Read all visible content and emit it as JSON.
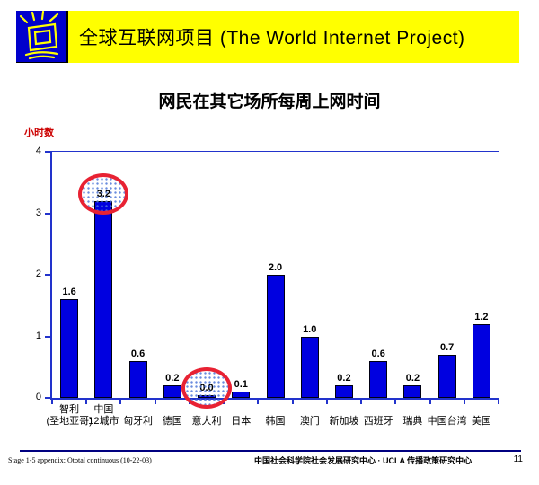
{
  "header": {
    "title": "全球互联网项目 (The World Internet Project)",
    "logo_icon": "shining-monitor-icon"
  },
  "slide_title": "网民在其它场所每周上网时间",
  "chart_data": {
    "type": "bar",
    "title": "网民在其它场所每周上网时间",
    "xlabel": "",
    "ylabel": "小时数",
    "ylim": [
      0,
      4
    ],
    "yticks": [
      0,
      1,
      2,
      3,
      4
    ],
    "grid": false,
    "legend": false,
    "categories": [
      "智利 (圣地亚哥)",
      "中国 12城市",
      "匈牙利",
      "德国",
      "意大利",
      "日本",
      "韩国",
      "澳门",
      "新加坡",
      "西班牙",
      "瑞典",
      "中国台湾",
      "美国"
    ],
    "category_lines": [
      [
        "智利",
        "(圣地亚哥)"
      ],
      [
        "中国",
        "12城市"
      ],
      [
        "匈牙利"
      ],
      [
        "德国"
      ],
      [
        "意大利"
      ],
      [
        "日本"
      ],
      [
        "韩国"
      ],
      [
        "澳门"
      ],
      [
        "新加坡"
      ],
      [
        "西班牙"
      ],
      [
        "瑞典"
      ],
      [
        "中国台湾"
      ],
      [
        "美国"
      ]
    ],
    "values": [
      1.6,
      3.2,
      0.6,
      0.2,
      0.0,
      0.1,
      2.0,
      1.0,
      0.2,
      0.6,
      0.2,
      0.7,
      1.2
    ],
    "annotations": [
      {
        "type": "ellipse",
        "target": "中国 12城市",
        "label": "3.2"
      },
      {
        "type": "ellipse",
        "target": "意大利",
        "label": "0.0"
      }
    ],
    "bar_color": "#0000e0",
    "axis_color": "#2233cc",
    "annotation_color": "#e82233",
    "ylabel_color": "#cc0000"
  },
  "footer": {
    "left": "Stage 1-5 appendix: Ototal continuous (10-22-03)",
    "center": "中国社会科学院社会发展研究中心 · UCLA 传播政策研究中心",
    "page_number": "11"
  }
}
